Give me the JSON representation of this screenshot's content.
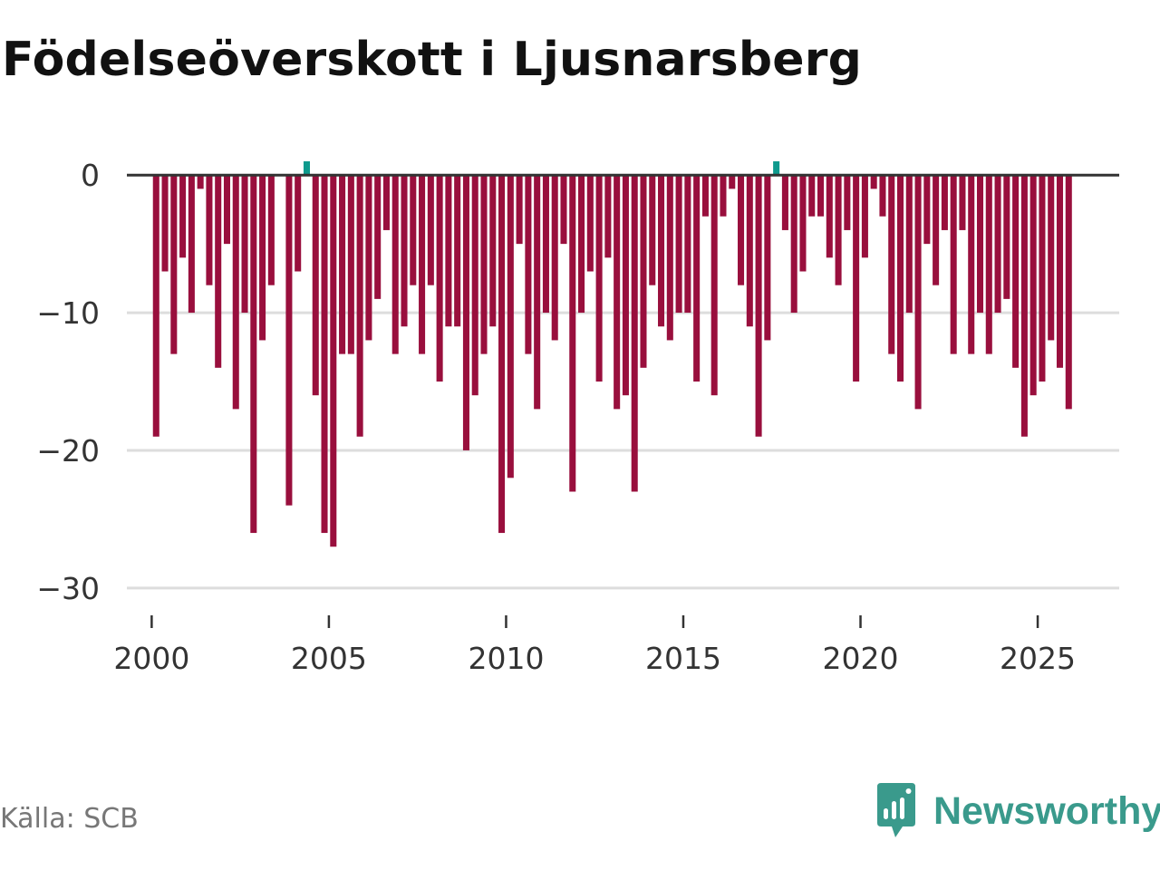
{
  "page": {
    "title": "Födelseöverskott i Ljusnarsberg",
    "source": "Källa: SCB",
    "brand": "Newsworthy"
  },
  "colors": {
    "negative": "#990f3d",
    "positive": "#0e9a8d",
    "grid": "#dddddd",
    "zero_line": "#333333",
    "brand": "#3a9a8c"
  },
  "chart_data": {
    "type": "bar",
    "title": "Födelseöverskott i Ljusnarsberg",
    "xlabel": "",
    "ylabel": "",
    "ylim": [
      -31,
      1
    ],
    "xlim": [
      1999.3,
      2027.3
    ],
    "yticks": [
      0,
      -10,
      -20,
      -30
    ],
    "ytick_labels": [
      "0",
      "−10",
      "−20",
      "−30"
    ],
    "xticks": [
      2000,
      2005,
      2010,
      2015,
      2020,
      2025
    ],
    "xtick_labels": [
      "2000",
      "2005",
      "2010",
      "2015",
      "2020",
      "2025"
    ],
    "series": [
      {
        "name": "Födelseöverskott",
        "frequency": "quarterly",
        "start": 2000.125,
        "step": 0.25,
        "values": [
          -19,
          -7,
          -13,
          -6,
          -10,
          -1,
          -8,
          -14,
          -5,
          -17,
          -10,
          -26,
          -12,
          -8,
          0,
          -24,
          -7,
          1,
          -16,
          -26,
          -27,
          -13,
          -13,
          -19,
          -12,
          -9,
          -4,
          -13,
          -11,
          -8,
          -13,
          -8,
          -15,
          -11,
          -11,
          -20,
          -16,
          -13,
          -11,
          -26,
          -22,
          -5,
          -13,
          -17,
          -10,
          -12,
          -5,
          -23,
          -10,
          -7,
          -15,
          -6,
          -17,
          -16,
          -23,
          -14,
          -8,
          -11,
          -12,
          -10,
          -10,
          -15,
          -3,
          -16,
          -3,
          -1,
          -8,
          -11,
          -19,
          -12,
          1,
          -4,
          -10,
          -7,
          -3,
          -3,
          -6,
          -8,
          -4,
          -15,
          -6,
          -1,
          -3,
          -13,
          -15,
          -10,
          -17,
          -5,
          -8,
          -4,
          -13,
          -4,
          -13,
          -10,
          -13,
          -10,
          -9,
          -14,
          -19,
          -16,
          -15,
          -12,
          -14,
          -17
        ]
      }
    ]
  }
}
